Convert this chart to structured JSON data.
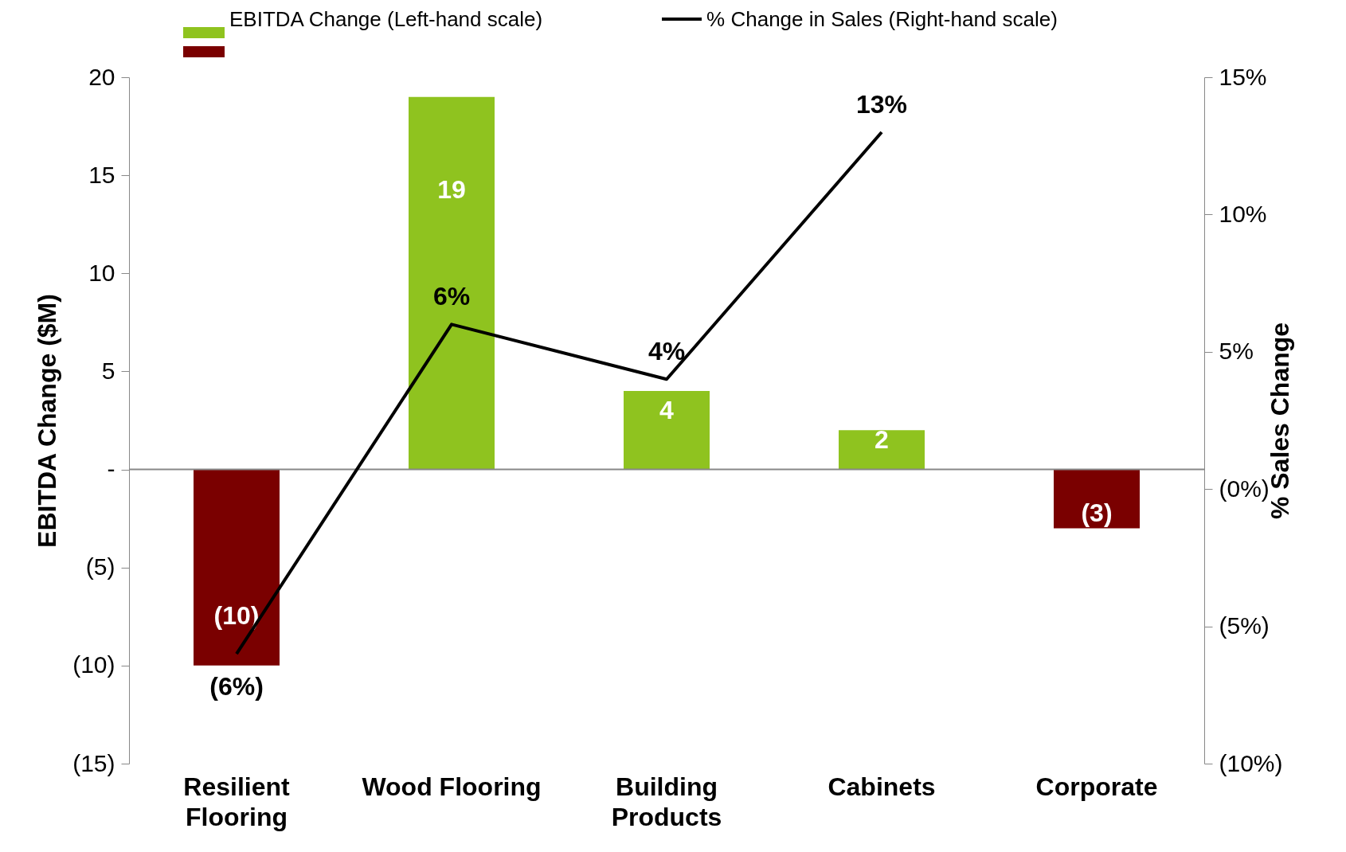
{
  "chart_data": {
    "type": "bar",
    "xlabel": null,
    "ylabel": "EBITDA Change ($M)",
    "y2label": "% Sales Change",
    "categories": [
      "Resilient Flooring",
      "Wood Flooring",
      "Building Products",
      "Cabinets",
      "Corporate"
    ],
    "series": [
      {
        "name": "EBITDA Change (Left-hand scale)",
        "color": "#8fc31f",
        "colors": [
          "#7a0000",
          "#8fc31f",
          "#8fc31f",
          "#8fc31f",
          "#7a0000"
        ],
        "values": [
          -10,
          19,
          4,
          2,
          -3
        ],
        "value_labels": [
          "(10)",
          "19",
          "4",
          "2",
          "(3)"
        ]
      },
      {
        "name": "% Change in Sales (Right-hand scale)",
        "type": "line",
        "axis": "y2",
        "color": "#000000",
        "values": [
          -6,
          6,
          4,
          13,
          null
        ],
        "value_labels": [
          "(6%)",
          "6%",
          "4%",
          "13%",
          null
        ]
      }
    ],
    "ylim": [
      -15,
      20
    ],
    "yticks": [
      {
        "value": -15,
        "label": "(15)"
      },
      {
        "value": -10,
        "label": "(10)"
      },
      {
        "value": -5,
        "label": "(5)"
      },
      {
        "value": 0,
        "label": "-"
      },
      5,
      10,
      15,
      20
    ],
    "y2lim": [
      -10,
      15
    ],
    "y2ticks": [
      {
        "value": -10,
        "label": "(10%)"
      },
      {
        "value": -5,
        "label": "(5%)"
      },
      {
        "value": 0,
        "label": "(0%)"
      },
      {
        "value": 5,
        "label": "5%"
      },
      {
        "value": 10,
        "label": "10%"
      },
      {
        "value": 15,
        "label": "15%"
      }
    ],
    "ref_lines": [
      {
        "axis": "y",
        "value": 0,
        "color": "#888888"
      }
    ],
    "legend": "top",
    "grid": false,
    "marker": "none",
    "line_style": "solid"
  }
}
